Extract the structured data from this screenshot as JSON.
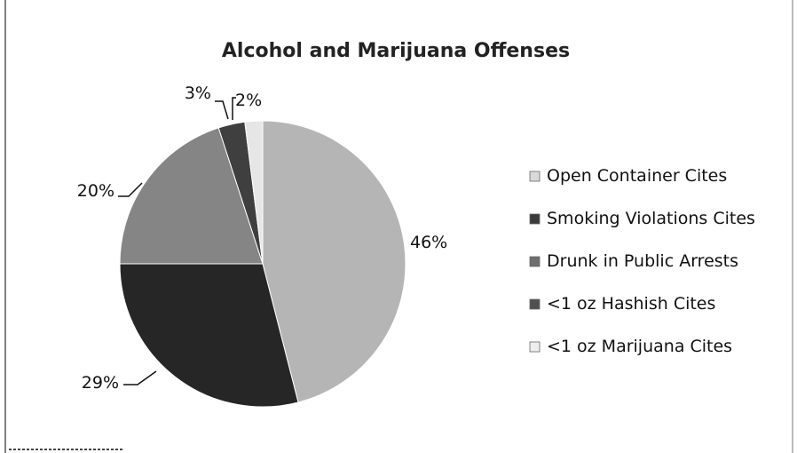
{
  "chart_data": {
    "type": "pie",
    "title": "Alcohol and Marijuana Offenses",
    "legend_position": "right",
    "slices": [
      {
        "label": "Open Container Cites",
        "value": 46,
        "value_label": "46%",
        "color": "#b5b5b5",
        "legend_marker_color": "#d9d9d9"
      },
      {
        "label": "Smoking Violations Cites",
        "value": 29,
        "value_label": "29%",
        "color": "#262626",
        "legend_marker_color": "#3a3a3a"
      },
      {
        "label": "Drunk in Public Arrests",
        "value": 20,
        "value_label": "20%",
        "color": "#858585",
        "legend_marker_color": "#6e6e6e"
      },
      {
        "label": "<1 oz Hashish Cites",
        "value": 3,
        "value_label": "3%",
        "color": "#3f3f3f",
        "legend_marker_color": "#505050"
      },
      {
        "label": "<1 oz Marijuana Cites",
        "value": 2,
        "value_label": "2%",
        "color": "#e6e6e6",
        "legend_marker_color": "#eeeeee"
      }
    ]
  }
}
